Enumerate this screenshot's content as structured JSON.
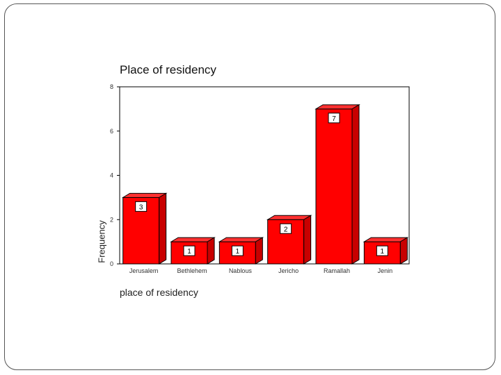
{
  "chart_data": {
    "type": "bar",
    "title": "Place of residency",
    "xlabel": "place of residency",
    "ylabel": "Frequency",
    "categories": [
      "Jerusalem",
      "Bethlehem",
      "Nablous",
      "Jericho",
      "Ramallah",
      "Jenin"
    ],
    "values": [
      3,
      1,
      1,
      2,
      7,
      1
    ],
    "ylim": [
      0,
      8
    ],
    "yticks": [
      0,
      2,
      4,
      6,
      8
    ],
    "bar_style": "3d",
    "data_labels": true,
    "grid": false,
    "bar_color": "#ff0000"
  }
}
